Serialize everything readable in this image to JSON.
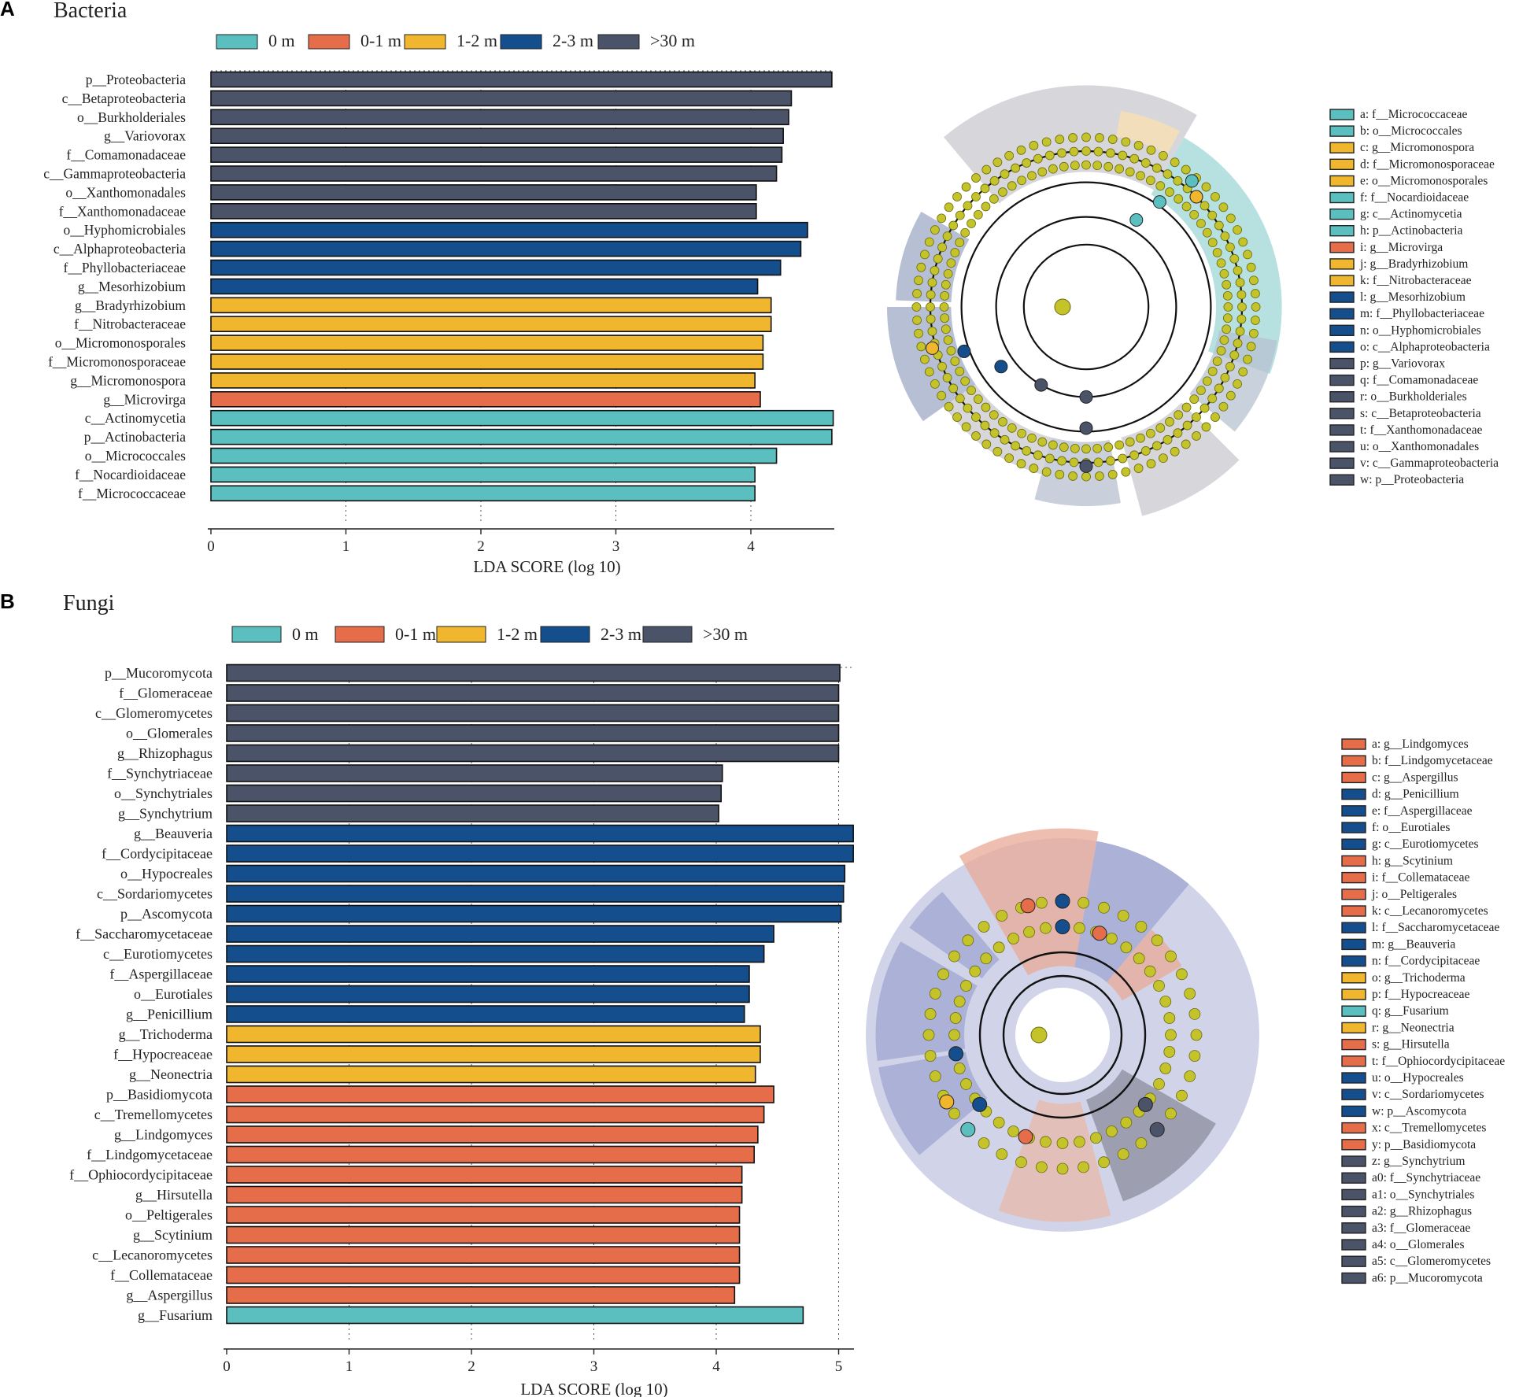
{
  "colors": {
    "0 m": "#5bbfbf",
    "0-1 m": "#e56d4a",
    "1-2 m": "#f0b62e",
    "2-3 m": "#154e8c",
    ">30 m": "#4a5368",
    "node": "#c4c42a"
  },
  "chart_data": [
    {
      "type": "bar",
      "orientation": "horizontal",
      "panel": "A",
      "title": "Bacteria",
      "xlabel": "LDA SCORE (log 10)",
      "xlim": [
        0,
        4.7
      ],
      "xticks": [
        0,
        1,
        2,
        3,
        4
      ],
      "grid": "vertical-dotted",
      "legend": [
        "0 m",
        "0-1 m",
        "1-2 m",
        "2-3 m",
        ">30 m"
      ],
      "bars": [
        {
          "label": "p__Proteobacteria",
          "value": 4.6,
          "group": ">30 m"
        },
        {
          "label": "c__Betaproteobacteria",
          "value": 4.3,
          "group": ">30 m"
        },
        {
          "label": "o__Burkholderiales",
          "value": 4.28,
          "group": ">30 m"
        },
        {
          "label": "g__Variovorax",
          "value": 4.24,
          "group": ">30 m"
        },
        {
          "label": "f__Comamonadaceae",
          "value": 4.23,
          "group": ">30 m"
        },
        {
          "label": "c__Gammaproteobacteria",
          "value": 4.19,
          "group": ">30 m"
        },
        {
          "label": "o__Xanthomonadales",
          "value": 4.04,
          "group": ">30 m"
        },
        {
          "label": "f__Xanthomonadaceae",
          "value": 4.04,
          "group": ">30 m"
        },
        {
          "label": "o__Hyphomicrobiales",
          "value": 4.42,
          "group": "2-3 m"
        },
        {
          "label": "c__Alphaproteobacteria",
          "value": 4.37,
          "group": "2-3 m"
        },
        {
          "label": "f__Phyllobacteriaceae",
          "value": 4.22,
          "group": "2-3 m"
        },
        {
          "label": "g__Mesorhizobium",
          "value": 4.05,
          "group": "2-3 m"
        },
        {
          "label": "g__Bradyrhizobium",
          "value": 4.15,
          "group": "1-2 m"
        },
        {
          "label": "f__Nitrobacteraceae",
          "value": 4.15,
          "group": "1-2 m"
        },
        {
          "label": "o__Micromonosporales",
          "value": 4.09,
          "group": "1-2 m"
        },
        {
          "label": "f__Micromonosporaceae",
          "value": 4.09,
          "group": "1-2 m"
        },
        {
          "label": "g__Micromonospora",
          "value": 4.03,
          "group": "1-2 m"
        },
        {
          "label": "g__Microvirga",
          "value": 4.07,
          "group": "0-1 m"
        },
        {
          "label": "c__Actinomycetia",
          "value": 4.61,
          "group": "0 m"
        },
        {
          "label": "p__Actinobacteria",
          "value": 4.6,
          "group": "0 m"
        },
        {
          "label": "o__Micrococcales",
          "value": 4.19,
          "group": "0 m"
        },
        {
          "label": "f__Nocardioidaceae",
          "value": 4.03,
          "group": "0 m"
        },
        {
          "label": "f__Micrococcaceae",
          "value": 4.03,
          "group": "0 m"
        }
      ],
      "cladogram_legend": [
        {
          "key": "a",
          "label": "f__Micrococcaceae",
          "group": "0 m"
        },
        {
          "key": "b",
          "label": "o__Micrococcales",
          "group": "0 m"
        },
        {
          "key": "c",
          "label": "g__Micromonospora",
          "group": "1-2 m"
        },
        {
          "key": "d",
          "label": "f__Micromonosporaceae",
          "group": "1-2 m"
        },
        {
          "key": "e",
          "label": "o__Micromonosporales",
          "group": "1-2 m"
        },
        {
          "key": "f",
          "label": "f__Nocardioidaceae",
          "group": "0 m"
        },
        {
          "key": "g",
          "label": "c__Actinomycetia",
          "group": "0 m"
        },
        {
          "key": "h",
          "label": "p__Actinobacteria",
          "group": "0 m"
        },
        {
          "key": "i",
          "label": "g__Microvirga",
          "group": "0-1 m"
        },
        {
          "key": "j",
          "label": "g__Bradyrhizobium",
          "group": "1-2 m"
        },
        {
          "key": "k",
          "label": "f__Nitrobacteraceae",
          "group": "1-2 m"
        },
        {
          "key": "l",
          "label": "g__Mesorhizobium",
          "group": "2-3 m"
        },
        {
          "key": "m",
          "label": "f__Phyllobacteriaceae",
          "group": "2-3 m"
        },
        {
          "key": "n",
          "label": "o__Hyphomicrobiales",
          "group": "2-3 m"
        },
        {
          "key": "o",
          "label": "c__Alphaproteobacteria",
          "group": "2-3 m"
        },
        {
          "key": "p",
          "label": "g__Variovorax",
          "group": ">30 m"
        },
        {
          "key": "q",
          "label": "f__Comamonadaceae",
          "group": ">30 m"
        },
        {
          "key": "r",
          "label": "o__Burkholderiales",
          "group": ">30 m"
        },
        {
          "key": "s",
          "label": "c__Betaproteobacteria",
          "group": ">30 m"
        },
        {
          "key": "t",
          "label": "f__Xanthomonadaceae",
          "group": ">30 m"
        },
        {
          "key": "u",
          "label": "o__Xanthomonadales",
          "group": ">30 m"
        },
        {
          "key": "v",
          "label": "c__Gammaproteobacteria",
          "group": ">30 m"
        },
        {
          "key": "w",
          "label": "p__Proteobacteria",
          "group": ">30 m"
        }
      ]
    },
    {
      "type": "bar",
      "orientation": "horizontal",
      "panel": "B",
      "title": "Fungi",
      "xlabel": "LDA SCORE (log 10)",
      "xlim": [
        0,
        5.1
      ],
      "xticks": [
        0,
        1,
        2,
        3,
        4,
        5
      ],
      "grid": "vertical-dotted",
      "legend": [
        "0 m",
        "0-1 m",
        "1-2 m",
        "2-3 m",
        ">30 m"
      ],
      "bars": [
        {
          "label": "p__Mucoromycota",
          "value": 5.01,
          "group": ">30 m"
        },
        {
          "label": "f__Glomeraceae",
          "value": 5.0,
          "group": ">30 m"
        },
        {
          "label": "c__Glomeromycetes",
          "value": 5.0,
          "group": ">30 m"
        },
        {
          "label": "o__Glomerales",
          "value": 5.0,
          "group": ">30 m"
        },
        {
          "label": "g__Rhizophagus",
          "value": 5.0,
          "group": ">30 m"
        },
        {
          "label": "f__Synchytriaceae",
          "value": 4.05,
          "group": ">30 m"
        },
        {
          "label": "o__Synchytriales",
          "value": 4.04,
          "group": ">30 m"
        },
        {
          "label": "g__Synchytrium",
          "value": 4.02,
          "group": ">30 m"
        },
        {
          "label": "g__Beauveria",
          "value": 5.12,
          "group": "2-3 m"
        },
        {
          "label": "f__Cordycipitaceae",
          "value": 5.12,
          "group": "2-3 m"
        },
        {
          "label": "o__Hypocreales",
          "value": 5.05,
          "group": "2-3 m"
        },
        {
          "label": "c__Sordariomycetes",
          "value": 5.04,
          "group": "2-3 m"
        },
        {
          "label": "p__Ascomycota",
          "value": 5.02,
          "group": "2-3 m"
        },
        {
          "label": "f__Saccharomycetaceae",
          "value": 4.47,
          "group": "2-3 m"
        },
        {
          "label": "c__Eurotiomycetes",
          "value": 4.39,
          "group": "2-3 m"
        },
        {
          "label": "f__Aspergillaceae",
          "value": 4.27,
          "group": "2-3 m"
        },
        {
          "label": "o__Eurotiales",
          "value": 4.27,
          "group": "2-3 m"
        },
        {
          "label": "g__Penicillium",
          "value": 4.23,
          "group": "2-3 m"
        },
        {
          "label": "g__Trichoderma",
          "value": 4.36,
          "group": "1-2 m"
        },
        {
          "label": "f__Hypocreaceae",
          "value": 4.36,
          "group": "1-2 m"
        },
        {
          "label": "g__Neonectria",
          "value": 4.32,
          "group": "1-2 m"
        },
        {
          "label": "p__Basidiomycota",
          "value": 4.47,
          "group": "0-1 m"
        },
        {
          "label": "c__Tremellomycetes",
          "value": 4.39,
          "group": "0-1 m"
        },
        {
          "label": "g__Lindgomyces",
          "value": 4.34,
          "group": "0-1 m"
        },
        {
          "label": "f__Lindgomycetaceae",
          "value": 4.31,
          "group": "0-1 m"
        },
        {
          "label": "f__Ophiocordycipitaceae",
          "value": 4.21,
          "group": "0-1 m"
        },
        {
          "label": "g__Hirsutella",
          "value": 4.21,
          "group": "0-1 m"
        },
        {
          "label": "o__Peltigerales",
          "value": 4.19,
          "group": "0-1 m"
        },
        {
          "label": "g__Scytinium",
          "value": 4.19,
          "group": "0-1 m"
        },
        {
          "label": "c__Lecanoromycetes",
          "value": 4.19,
          "group": "0-1 m"
        },
        {
          "label": "f__Collemataceae",
          "value": 4.19,
          "group": "0-1 m"
        },
        {
          "label": "g__Aspergillus",
          "value": 4.15,
          "group": "0-1 m"
        },
        {
          "label": "g__Fusarium",
          "value": 4.71,
          "group": "0 m"
        }
      ],
      "cladogram_legend": [
        {
          "key": "a",
          "label": "g__Lindgomyces",
          "group": "0-1 m"
        },
        {
          "key": "b",
          "label": "f__Lindgomycetaceae",
          "group": "0-1 m"
        },
        {
          "key": "c",
          "label": "g__Aspergillus",
          "group": "0-1 m"
        },
        {
          "key": "d",
          "label": "g__Penicillium",
          "group": "2-3 m"
        },
        {
          "key": "e",
          "label": "f__Aspergillaceae",
          "group": "2-3 m"
        },
        {
          "key": "f",
          "label": "o__Eurotiales",
          "group": "2-3 m"
        },
        {
          "key": "g",
          "label": "c__Eurotiomycetes",
          "group": "2-3 m"
        },
        {
          "key": "h",
          "label": "g__Scytinium",
          "group": "0-1 m"
        },
        {
          "key": "i",
          "label": "f__Collemataceae",
          "group": "0-1 m"
        },
        {
          "key": "j",
          "label": "o__Peltigerales",
          "group": "0-1 m"
        },
        {
          "key": "k",
          "label": "c__Lecanoromycetes",
          "group": "0-1 m"
        },
        {
          "key": "l",
          "label": "f__Saccharomycetaceae",
          "group": "2-3 m"
        },
        {
          "key": "m",
          "label": "g__Beauveria",
          "group": "2-3 m"
        },
        {
          "key": "n",
          "label": "f__Cordycipitaceae",
          "group": "2-3 m"
        },
        {
          "key": "o",
          "label": "g__Trichoderma",
          "group": "1-2 m"
        },
        {
          "key": "p",
          "label": "f__Hypocreaceae",
          "group": "1-2 m"
        },
        {
          "key": "q",
          "label": "g__Fusarium",
          "group": "0 m"
        },
        {
          "key": "r",
          "label": "g__Neonectria",
          "group": "1-2 m"
        },
        {
          "key": "s",
          "label": "g__Hirsutella",
          "group": "0-1 m"
        },
        {
          "key": "t",
          "label": "f__Ophiocordycipitaceae",
          "group": "0-1 m"
        },
        {
          "key": "u",
          "label": "o__Hypocreales",
          "group": "2-3 m"
        },
        {
          "key": "v",
          "label": "c__Sordariomycetes",
          "group": "2-3 m"
        },
        {
          "key": "w",
          "label": "p__Ascomycota",
          "group": "2-3 m"
        },
        {
          "key": "x",
          "label": "c__Tremellomycetes",
          "group": "0-1 m"
        },
        {
          "key": "y",
          "label": "p__Basidiomycota",
          "group": "0-1 m"
        },
        {
          "key": "z",
          "label": "g__Synchytrium",
          "group": ">30 m"
        },
        {
          "key": "a0",
          "label": "f__Synchytriaceae",
          "group": ">30 m"
        },
        {
          "key": "a1",
          "label": "o__Synchytriales",
          "group": ">30 m"
        },
        {
          "key": "a2",
          "label": "g__Rhizophagus",
          "group": ">30 m"
        },
        {
          "key": "a3",
          "label": "f__Glomeraceae",
          "group": ">30 m"
        },
        {
          "key": "a4",
          "label": "o__Glomerales",
          "group": ">30 m"
        },
        {
          "key": "a5",
          "label": "c__Glomeromycetes",
          "group": ">30 m"
        },
        {
          "key": "a6",
          "label": "p__Mucoromycota",
          "group": ">30 m"
        }
      ]
    }
  ]
}
